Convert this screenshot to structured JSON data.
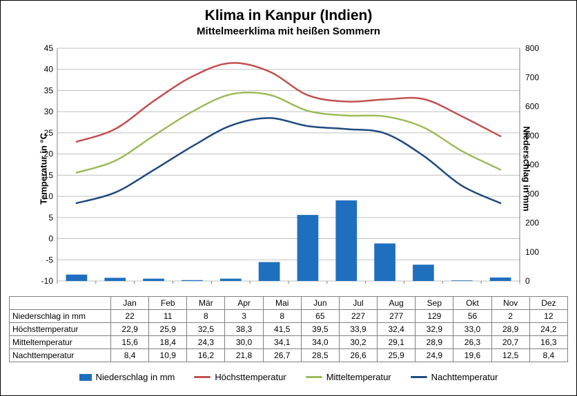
{
  "title": "Klima in Kanpur (Indien)",
  "subtitle": "Mittelmeerklima mit heißen Sommern",
  "axis": {
    "left_label": "Temperatur in °C",
    "right_label": "Niederschlag in mm",
    "left_min": -10,
    "left_max": 45,
    "left_step": 5,
    "right_min": 0,
    "right_max": 800,
    "right_step": 100
  },
  "months": [
    "Jan",
    "Feb",
    "Mär",
    "Apr",
    "Mai",
    "Jun",
    "Jul",
    "Aug",
    "Sep",
    "Okt",
    "Nov",
    "Dez"
  ],
  "series": {
    "precip": {
      "label": "Niederschlag in mm",
      "color": "#1f6fbf",
      "type": "bar",
      "values_display": [
        "22",
        "11",
        "8",
        "3",
        "8",
        "65",
        "227",
        "277",
        "129",
        "56",
        "2",
        "12"
      ],
      "values": [
        22,
        11,
        8,
        3,
        8,
        65,
        227,
        277,
        129,
        56,
        2,
        12
      ]
    },
    "high": {
      "label": "Höchsttemperatur",
      "color": "#c0504d",
      "type": "line",
      "values_display": [
        "22,9",
        "25,9",
        "32,5",
        "38,3",
        "41,5",
        "39,5",
        "33,9",
        "32,4",
        "32,9",
        "33,0",
        "28,9",
        "24,2"
      ],
      "values": [
        22.9,
        25.9,
        32.5,
        38.3,
        41.5,
        39.5,
        33.9,
        32.4,
        32.9,
        33.0,
        28.9,
        24.2
      ]
    },
    "mean": {
      "label": "Mitteltemperatur",
      "color": "#9bbb59",
      "type": "line",
      "values_display": [
        "15,6",
        "18,4",
        "24,3",
        "30,0",
        "34,1",
        "34,0",
        "30,2",
        "29,1",
        "28,9",
        "26,3",
        "20,7",
        "16,3"
      ],
      "values": [
        15.6,
        18.4,
        24.3,
        30.0,
        34.1,
        34.0,
        30.2,
        29.1,
        28.9,
        26.3,
        20.7,
        16.3
      ]
    },
    "night": {
      "label": "Nachttemperatur",
      "color": "#1f497d",
      "type": "line",
      "values_display": [
        "8,4",
        "10,9",
        "16,2",
        "21,8",
        "26,7",
        "28,5",
        "26,6",
        "25,9",
        "24,9",
        "19,6",
        "12,5",
        "8,4"
      ],
      "values": [
        8.4,
        10.9,
        16.2,
        21.8,
        26.7,
        28.5,
        26.6,
        25.9,
        24.9,
        19.6,
        12.5,
        8.4
      ]
    }
  },
  "style": {
    "background": "#ffffff",
    "grid_color": "#bfbfbf",
    "axis_color": "#7f7f7f",
    "tick_font_size": 12,
    "label_font_size": 13,
    "line_width": 2.5,
    "bar_width_ratio": 0.55
  },
  "table": {
    "row_labels": [
      "Niederschlag in mm",
      "Höchsttemperatur",
      "Mitteltemperatur",
      "Nachttemperatur"
    ]
  },
  "legend": {
    "items": [
      {
        "key": "precip",
        "label": "Niederschlag in mm"
      },
      {
        "key": "high",
        "label": "Höchsttemperatur"
      },
      {
        "key": "mean",
        "label": "Mitteltemperatur"
      },
      {
        "key": "night",
        "label": "Nachttemperatur"
      }
    ]
  }
}
